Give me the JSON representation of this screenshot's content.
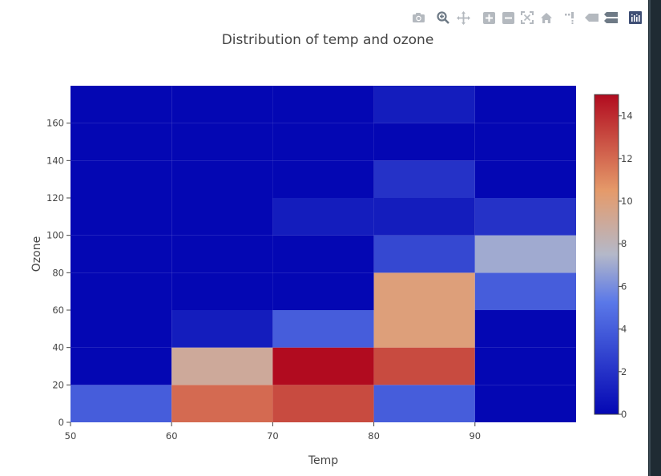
{
  "toolbar": {
    "buttons": [
      {
        "name": "camera-icon",
        "label": "Download plot as a png"
      },
      {
        "name": "zoom-icon",
        "label": "Zoom"
      },
      {
        "name": "pan-icon",
        "label": "Pan"
      },
      {
        "name": "zoom-in-icon",
        "label": "Zoom in"
      },
      {
        "name": "zoom-out-icon",
        "label": "Zoom out"
      },
      {
        "name": "autoscale-icon",
        "label": "Autoscale"
      },
      {
        "name": "home-icon",
        "label": "Reset axes"
      },
      {
        "name": "spike-lines-icon",
        "label": "Toggle Spike Lines"
      },
      {
        "name": "hover-closest-icon",
        "label": "Show closest data on hover"
      },
      {
        "name": "hover-compare-icon",
        "label": "Compare data on hover"
      },
      {
        "name": "plotly-logo-icon",
        "label": "Produced with Plotly"
      }
    ],
    "colors": {
      "icon": "#b4b9bf",
      "active": "#6e7a86",
      "logo": "#3f4f75"
    }
  },
  "chart_data": {
    "type": "heatmap",
    "title": "Distribution of temp and ozone",
    "xlabel": "Temp",
    "ylabel": "Ozone",
    "x_bins": [
      [
        50,
        60
      ],
      [
        60,
        70
      ],
      [
        70,
        80
      ],
      [
        80,
        90
      ],
      [
        90,
        100
      ]
    ],
    "y_bins": [
      [
        0,
        20
      ],
      [
        20,
        40
      ],
      [
        40,
        60
      ],
      [
        60,
        80
      ],
      [
        80,
        100
      ],
      [
        100,
        120
      ],
      [
        120,
        140
      ],
      [
        140,
        160
      ],
      [
        160,
        180
      ]
    ],
    "z": [
      [
        4,
        12,
        13,
        4,
        0
      ],
      [
        0,
        9,
        15,
        13,
        0
      ],
      [
        0,
        1,
        4,
        10,
        0
      ],
      [
        0,
        0,
        0,
        10,
        4
      ],
      [
        0,
        0,
        0,
        3,
        7
      ],
      [
        0,
        0,
        1,
        1,
        2
      ],
      [
        0,
        0,
        0,
        2,
        0
      ],
      [
        0,
        0,
        0,
        0,
        0
      ],
      [
        0,
        0,
        0,
        1,
        0
      ]
    ],
    "xlim": [
      50,
      100
    ],
    "ylim": [
      0,
      180
    ],
    "x_ticks": [
      50,
      60,
      70,
      80,
      90
    ],
    "x_tick_labels": [
      "50",
      "60",
      "70",
      "80",
      "90"
    ],
    "y_ticks": [
      0,
      20,
      40,
      60,
      80,
      100,
      120,
      140,
      160
    ],
    "y_tick_labels": [
      "0",
      "20",
      "40",
      "60",
      "80",
      "100",
      "120",
      "140",
      "160"
    ],
    "colorscale": [
      [
        0.0,
        "#0508b8"
      ],
      [
        0.1,
        "#1910d8"
      ],
      [
        0.2,
        "#3c19f0"
      ],
      [
        0.3,
        "#6b1cfb"
      ],
      [
        0.4,
        "#981cfd"
      ],
      [
        0.5,
        "#bf1cfd"
      ],
      [
        0.6,
        "#dd2bfd"
      ],
      [
        0.7,
        "#f246fe"
      ],
      [
        0.8,
        "#fc67fd"
      ],
      [
        0.9,
        "#fea5fd"
      ],
      [
        1.0,
        "#febefe"
      ]
    ],
    "colorscale_anchors": [
      [
        0.0,
        "#0407b3"
      ],
      [
        0.35,
        "#5a78e8"
      ],
      [
        0.5,
        "#b4b8c9"
      ],
      [
        0.7,
        "#e59a6a"
      ],
      [
        1.0,
        "#b10b1f"
      ]
    ],
    "colorbar": {
      "zmin": 0,
      "zmax": 15,
      "ticks": [
        0,
        2,
        4,
        6,
        8,
        10,
        12,
        14
      ],
      "tick_labels": [
        "0",
        "2",
        "4",
        "6",
        "8",
        "10",
        "12",
        "14"
      ]
    },
    "grid": false,
    "legend": "none"
  }
}
